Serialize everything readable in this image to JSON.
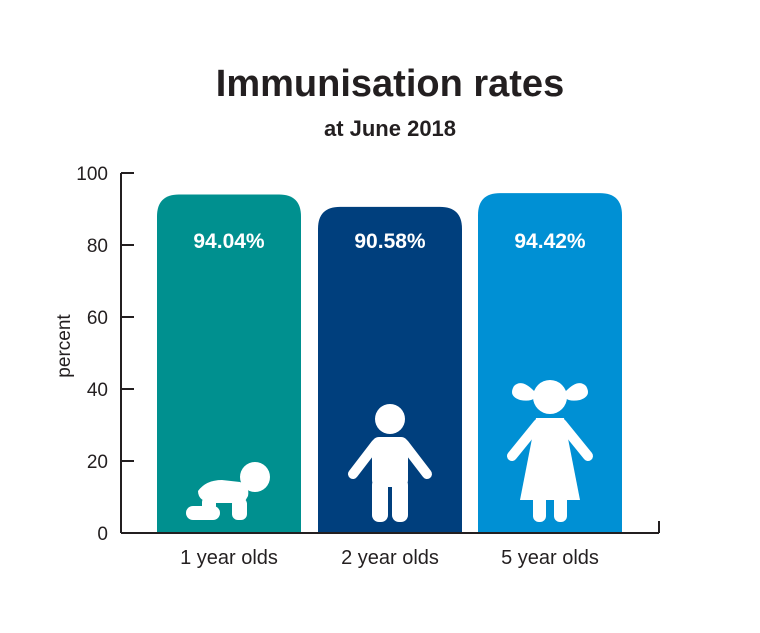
{
  "chart_data": {
    "type": "bar",
    "title": "Immunisation rates",
    "subtitle": "at June 2018",
    "ylabel": "percent",
    "xlabel": "",
    "categories": [
      "1 year olds",
      "2 year olds",
      "5 year olds"
    ],
    "values": [
      94.04,
      90.58,
      94.42
    ],
    "data_labels": [
      "94.04%",
      "90.58%",
      "94.42%"
    ],
    "ylim": [
      0,
      100
    ],
    "yticks": [
      "0",
      "20",
      "40",
      "60",
      "80",
      "100"
    ],
    "colors": [
      "#00908f",
      "#003f7d",
      "#0090d4"
    ],
    "icons": [
      "crawling-baby-icon",
      "child-icon",
      "girl-icon"
    ],
    "grid": false,
    "legend": "none"
  }
}
